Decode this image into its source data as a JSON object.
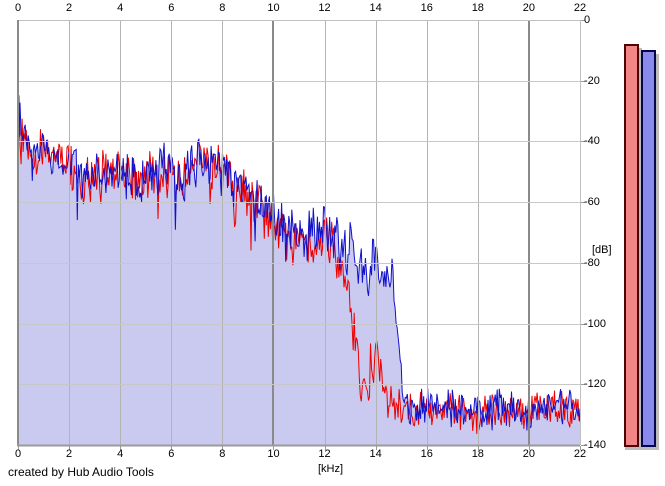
{
  "app": {
    "credit": "created by Hub Audio Tools"
  },
  "axes": {
    "x": {
      "unit_label": "[kHz]",
      "min": 0,
      "max": 22,
      "ticks": [
        0,
        2,
        4,
        6,
        8,
        10,
        12,
        14,
        16,
        18,
        20,
        22
      ],
      "major_every": 10,
      "shown_top_and_bottom": true
    },
    "y": {
      "unit_label": "[dB]",
      "min": -140,
      "max": 0,
      "ticks": [
        0,
        -20,
        -40,
        -60,
        -80,
        -100,
        -120,
        -140
      ],
      "side": "right"
    }
  },
  "colors": {
    "background": "#ffffff",
    "fill_area": "#cacaf0",
    "trace_red": "#ee0000",
    "trace_blue": "#1111cc",
    "grid_minor_v": "#b4b4b4",
    "grid_minor_h": "#c8c8c8",
    "grid_major": "#8a8a8a",
    "border_dark": "#9a9a9a",
    "border_light": "#c0c0c0",
    "text": "#000000"
  },
  "chart_data": {
    "type": "line",
    "title": "",
    "xlabel": "[kHz]",
    "ylabel": "[dB]",
    "xlim": [
      0,
      22
    ],
    "ylim": [
      -140,
      0
    ],
    "grid": true,
    "legend": null,
    "samples_per_khz": 25,
    "series": [
      {
        "name": "spectrum-red-channel",
        "color": "#ee0000",
        "fill": false,
        "seed": 29,
        "noise": {
          "up_db": 7,
          "down_db": 13,
          "deep_dip_db": 16,
          "deep_dip_prob": 0.05,
          "floor_threshold_db": -118,
          "floor_up_db": 6,
          "floor_down_db": 9
        },
        "envelope_points": [
          [
            0,
            -27
          ],
          [
            0.15,
            -32
          ],
          [
            0.5,
            -40
          ],
          [
            1,
            -42
          ],
          [
            1.5,
            -44
          ],
          [
            2,
            -45
          ],
          [
            2.5,
            -50
          ],
          [
            3,
            -50
          ],
          [
            3.5,
            -48
          ],
          [
            4,
            -48
          ],
          [
            4.5,
            -50
          ],
          [
            5,
            -50
          ],
          [
            5.5,
            -48
          ],
          [
            6,
            -48
          ],
          [
            6.5,
            -49
          ],
          [
            7,
            -44
          ],
          [
            7.3,
            -38
          ],
          [
            7.6,
            -46
          ],
          [
            8,
            -47
          ],
          [
            8.5,
            -52
          ],
          [
            9,
            -56
          ],
          [
            9.5,
            -60
          ],
          [
            10,
            -63
          ],
          [
            10.5,
            -68
          ],
          [
            11,
            -71
          ],
          [
            11.5,
            -71
          ],
          [
            12,
            -69
          ],
          [
            12.4,
            -73
          ],
          [
            12.8,
            -80
          ],
          [
            13,
            -90
          ],
          [
            13.2,
            -103
          ],
          [
            13.4,
            -115
          ],
          [
            13.6,
            -122
          ],
          [
            13.8,
            -112
          ],
          [
            14,
            -104
          ],
          [
            14.2,
            -112
          ],
          [
            14.4,
            -124
          ],
          [
            14.7,
            -127
          ],
          [
            15,
            -127
          ],
          [
            16,
            -128
          ],
          [
            17,
            -127
          ],
          [
            18,
            -128
          ],
          [
            19,
            -127
          ],
          [
            20,
            -128
          ],
          [
            21,
            -127
          ],
          [
            22,
            -128
          ]
        ]
      },
      {
        "name": "spectrum-blue-channel",
        "color": "#1111cc",
        "fill": true,
        "fill_color": "#cacaf0",
        "seed": 101,
        "noise": {
          "up_db": 7,
          "down_db": 13,
          "deep_dip_db": 16,
          "deep_dip_prob": 0.05,
          "floor_threshold_db": -118,
          "floor_up_db": 6,
          "floor_down_db": 9
        },
        "envelope_points": [
          [
            0,
            -30
          ],
          [
            0.15,
            -34
          ],
          [
            0.5,
            -39
          ],
          [
            1,
            -41
          ],
          [
            1.5,
            -43
          ],
          [
            2,
            -44
          ],
          [
            2.5,
            -49
          ],
          [
            3,
            -49
          ],
          [
            3.5,
            -47
          ],
          [
            4,
            -47
          ],
          [
            4.5,
            -49
          ],
          [
            5,
            -49
          ],
          [
            5.5,
            -47
          ],
          [
            6,
            -47
          ],
          [
            6.5,
            -48
          ],
          [
            7,
            -44
          ],
          [
            7.5,
            -45
          ],
          [
            8,
            -46
          ],
          [
            8.5,
            -51
          ],
          [
            9,
            -55
          ],
          [
            9.5,
            -58
          ],
          [
            10,
            -61
          ],
          [
            10.5,
            -65
          ],
          [
            11,
            -68
          ],
          [
            11.5,
            -68
          ],
          [
            12,
            -66
          ],
          [
            12.5,
            -70
          ],
          [
            13,
            -73
          ],
          [
            13.4,
            -78
          ],
          [
            13.7,
            -80
          ],
          [
            14,
            -76
          ],
          [
            14.3,
            -82
          ],
          [
            14.6,
            -80
          ],
          [
            14.85,
            -95
          ],
          [
            15.05,
            -122
          ],
          [
            15.3,
            -127
          ],
          [
            16,
            -127
          ],
          [
            17,
            -126
          ],
          [
            18,
            -127
          ],
          [
            19,
            -126
          ],
          [
            20,
            -127
          ],
          [
            21,
            -126
          ],
          [
            22,
            -127
          ]
        ]
      }
    ]
  },
  "meters": {
    "bars": [
      {
        "id": "level-meter-red",
        "peak_db": -8,
        "fill": "#f28585",
        "border": "#4d0505",
        "track": "#bcbcbc"
      },
      {
        "id": "level-meter-blue",
        "peak_db": -10,
        "fill": "#8a8aec",
        "border": "#05054d",
        "track": "#bcbcbc"
      }
    ]
  }
}
